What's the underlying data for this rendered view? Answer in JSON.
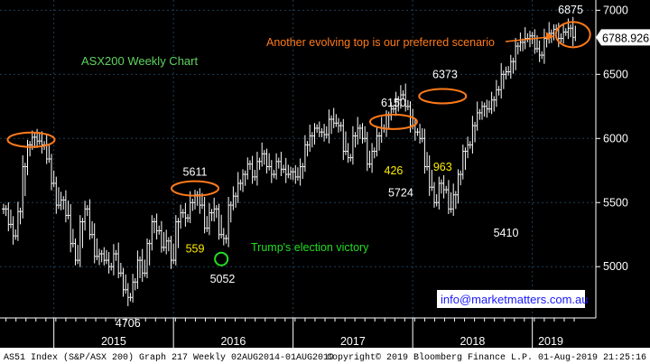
{
  "chart_data": {
    "type": "ohlc",
    "title": "ASX200 Weekly Chart",
    "ylim": [
      4600,
      7080
    ],
    "yticks": [
      5000,
      5500,
      6000,
      6500,
      7000
    ],
    "xlabels": [
      "2015",
      "2016",
      "2017",
      "2018",
      "2019"
    ],
    "last_value": "6788.926",
    "colors": {
      "background": "#000000",
      "bars": "#ffffff",
      "grid": "#1f3f58",
      "title": "#5fd35f",
      "annotation": "#ff7a1a",
      "label_yellow": "#ffee00",
      "trump_green": "#22dd22"
    },
    "peaks": [
      {
        "label": "5611",
        "x": 2016.18,
        "y": 5611
      },
      {
        "label": "6150",
        "x": 2017.84,
        "y": 6150
      },
      {
        "label": "6373",
        "x": 2018.27,
        "y": 6373
      },
      {
        "label": "6875",
        "x": 2019.32,
        "y": 6875
      }
    ],
    "troughs": [
      {
        "label": "4706",
        "x": 2015.62,
        "y": 4706
      },
      {
        "label": "5052",
        "x": 2016.41,
        "y": 5052
      },
      {
        "label": "5724",
        "x": 2017.9,
        "y": 5724
      },
      {
        "label": "5410",
        "x": 2018.78,
        "y": 5410
      }
    ],
    "rise_labels": [
      {
        "label": "559",
        "x": 2016.18,
        "y": 5110
      },
      {
        "label": "426",
        "x": 2017.84,
        "y": 5720
      },
      {
        "label": "963",
        "x": 2018.25,
        "y": 5750
      }
    ],
    "top_ellipses": [
      {
        "x": 2014.81,
        "y": 5990
      },
      {
        "x": 2016.18,
        "y": 5610
      },
      {
        "x": 2017.84,
        "y": 6130
      },
      {
        "x": 2018.25,
        "y": 6330
      },
      {
        "x": 2019.34,
        "y": 6810
      }
    ],
    "trump_marker": {
      "x": 2016.4,
      "y": 5060
    },
    "series_close": [
      [
        2014.58,
        5450
      ],
      [
        2014.62,
        5330
      ],
      [
        2014.66,
        5240
      ],
      [
        2014.7,
        5430
      ],
      [
        2014.74,
        5780
      ],
      [
        2014.78,
        5950
      ],
      [
        2014.82,
        6010
      ],
      [
        2014.86,
        5980
      ],
      [
        2014.9,
        5950
      ],
      [
        2014.94,
        5840
      ],
      [
        2014.98,
        5650
      ],
      [
        2015.02,
        5480
      ],
      [
        2015.06,
        5520
      ],
      [
        2015.1,
        5400
      ],
      [
        2015.14,
        5180
      ],
      [
        2015.18,
        5050
      ],
      [
        2015.22,
        5350
      ],
      [
        2015.26,
        5450
      ],
      [
        2015.3,
        5250
      ],
      [
        2015.34,
        5080
      ],
      [
        2015.38,
        5100
      ],
      [
        2015.42,
        5050
      ],
      [
        2015.46,
        5000
      ],
      [
        2015.5,
        5100
      ],
      [
        2015.54,
        4950
      ],
      [
        2015.58,
        4820
      ],
      [
        2015.62,
        4760
      ],
      [
        2015.66,
        4880
      ],
      [
        2015.7,
        5050
      ],
      [
        2015.74,
        4950
      ],
      [
        2015.78,
        5180
      ],
      [
        2015.82,
        5350
      ],
      [
        2015.86,
        5280
      ],
      [
        2015.9,
        5150
      ],
      [
        2015.94,
        5200
      ],
      [
        2015.98,
        5050
      ],
      [
        2016.02,
        5350
      ],
      [
        2016.06,
        5420
      ],
      [
        2016.1,
        5380
      ],
      [
        2016.14,
        5500
      ],
      [
        2016.18,
        5560
      ],
      [
        2016.22,
        5480
      ],
      [
        2016.26,
        5300
      ],
      [
        2016.3,
        5420
      ],
      [
        2016.34,
        5450
      ],
      [
        2016.38,
        5250
      ],
      [
        2016.42,
        5220
      ],
      [
        2016.46,
        5480
      ],
      [
        2016.5,
        5550
      ],
      [
        2016.54,
        5650
      ],
      [
        2016.58,
        5720
      ],
      [
        2016.62,
        5800
      ],
      [
        2016.66,
        5700
      ],
      [
        2016.7,
        5820
      ],
      [
        2016.74,
        5880
      ],
      [
        2016.78,
        5780
      ],
      [
        2016.82,
        5720
      ],
      [
        2016.86,
        5820
      ],
      [
        2016.9,
        5760
      ],
      [
        2016.94,
        5720
      ],
      [
        2016.98,
        5740
      ],
      [
        2017.02,
        5700
      ],
      [
        2017.06,
        5780
      ],
      [
        2017.1,
        5950
      ],
      [
        2017.14,
        6020
      ],
      [
        2017.18,
        6080
      ],
      [
        2017.22,
        6050
      ],
      [
        2017.26,
        6030
      ],
      [
        2017.3,
        6150
      ],
      [
        2017.34,
        6120
      ],
      [
        2017.38,
        6100
      ],
      [
        2017.42,
        5900
      ],
      [
        2017.46,
        5850
      ],
      [
        2017.5,
        6020
      ],
      [
        2017.54,
        6080
      ],
      [
        2017.58,
        6000
      ],
      [
        2017.62,
        5800
      ],
      [
        2017.66,
        5900
      ],
      [
        2017.7,
        6020
      ],
      [
        2017.74,
        6080
      ],
      [
        2017.78,
        6180
      ],
      [
        2017.82,
        6230
      ],
      [
        2017.86,
        6300
      ],
      [
        2017.9,
        6340
      ],
      [
        2017.94,
        6250
      ],
      [
        2017.98,
        6100
      ],
      [
        2018.02,
        6050
      ],
      [
        2018.06,
        6000
      ],
      [
        2018.1,
        5780
      ],
      [
        2018.14,
        5620
      ],
      [
        2018.18,
        5500
      ],
      [
        2018.22,
        5650
      ],
      [
        2018.26,
        5600
      ],
      [
        2018.3,
        5450
      ],
      [
        2018.34,
        5560
      ],
      [
        2018.38,
        5720
      ],
      [
        2018.42,
        5900
      ],
      [
        2018.46,
        5950
      ],
      [
        2018.5,
        6100
      ],
      [
        2018.54,
        6200
      ],
      [
        2018.58,
        6250
      ],
      [
        2018.62,
        6230
      ],
      [
        2018.66,
        6300
      ],
      [
        2018.7,
        6380
      ],
      [
        2018.74,
        6500
      ],
      [
        2018.78,
        6520
      ],
      [
        2018.82,
        6600
      ],
      [
        2018.86,
        6720
      ],
      [
        2018.9,
        6750
      ],
      [
        2018.94,
        6780
      ],
      [
        2018.98,
        6800
      ],
      [
        2019.02,
        6700
      ],
      [
        2019.06,
        6650
      ],
      [
        2019.1,
        6780
      ],
      [
        2019.14,
        6820
      ],
      [
        2019.18,
        6850
      ],
      [
        2019.22,
        6780
      ],
      [
        2019.26,
        6830
      ],
      [
        2019.3,
        6860
      ],
      [
        2019.34,
        6789
      ]
    ]
  },
  "annotations": {
    "scenario": "Another evolving top is our preferred scenario",
    "trump": "Trump's election victory",
    "website": "info@marketmatters.com.au"
  },
  "footer": {
    "left": "AS51 Index (S&P/ASX 200) Graph 217  Weekly 02AUG2014-01AUG2019",
    "right": "Copyright© 2019 Bloomberg Finance L.P.     01-Aug-2019 21:25:16"
  }
}
